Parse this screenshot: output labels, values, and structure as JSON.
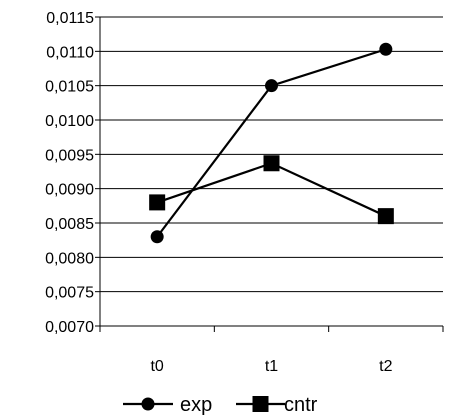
{
  "chart_data": {
    "type": "line",
    "categories": [
      "t0",
      "t1",
      "t2"
    ],
    "series": [
      {
        "name": "exp",
        "values": [
          0.0083,
          0.0105,
          0.01103
        ],
        "marker": "circle",
        "color": "#000000"
      },
      {
        "name": "cntr",
        "values": [
          0.0088,
          0.00937,
          0.0086
        ],
        "marker": "square",
        "color": "#000000"
      }
    ],
    "ylim": [
      0.007,
      0.0115
    ],
    "yticks": [
      "0,0115",
      "0,0110",
      "0,0105",
      "0,0100",
      "0,0095",
      "0,0090",
      "0,0085",
      "0,0080",
      "0,0075",
      "0,0070"
    ],
    "grid": true,
    "legend_position": "bottom"
  }
}
